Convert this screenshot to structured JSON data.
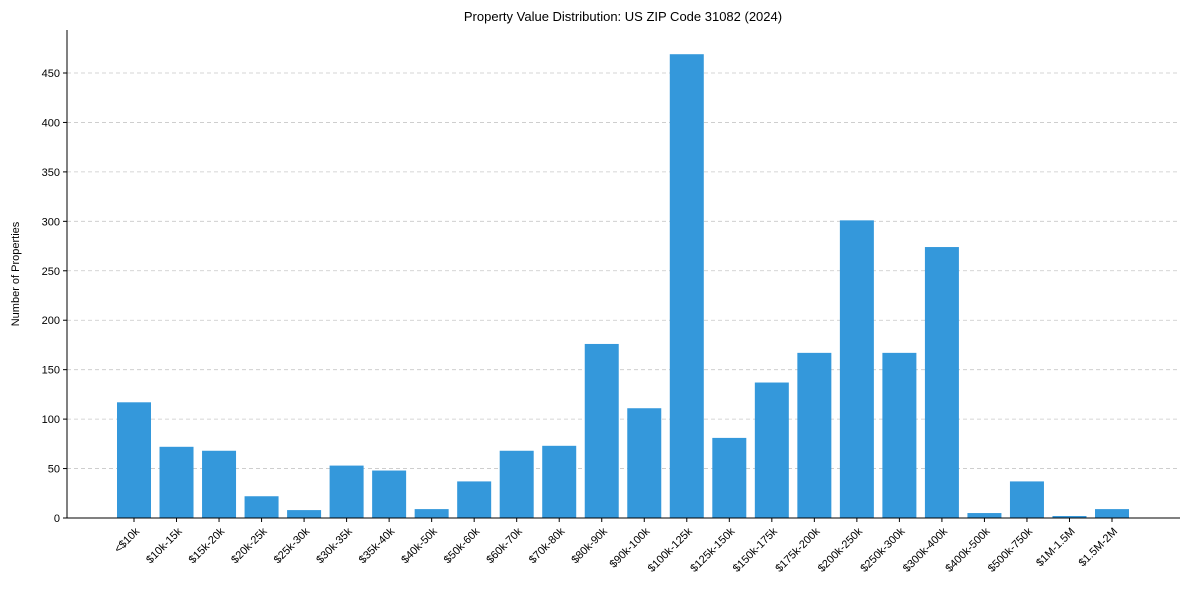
{
  "chart_data": {
    "type": "bar",
    "title": "Property Value Distribution: US ZIP Code 31082 (2024)",
    "xlabel": "",
    "ylabel": "Number of Properties",
    "ylim": [
      0,
      495
    ],
    "yticks": [
      0,
      50,
      100,
      150,
      200,
      250,
      300,
      350,
      400,
      450
    ],
    "grid": "y-dashed",
    "bar_color": "#3498db",
    "categories": [
      "<$10k",
      "$10k-15k",
      "$15k-20k",
      "$20k-25k",
      "$25k-30k",
      "$30k-35k",
      "$35k-40k",
      "$40k-50k",
      "$50k-60k",
      "$60k-70k",
      "$70k-80k",
      "$80k-90k",
      "$90k-100k",
      "$100k-125k",
      "$125k-150k",
      "$150k-175k",
      "$175k-200k",
      "$200k-250k",
      "$250k-300k",
      "$300k-400k",
      "$400k-500k",
      "$500k-750k",
      "$1M-1.5M",
      "$1.5M-2M"
    ],
    "values": [
      117,
      72,
      68,
      22,
      8,
      53,
      48,
      9,
      37,
      68,
      73,
      176,
      111,
      469,
      81,
      137,
      167,
      301,
      167,
      274,
      5,
      37,
      2,
      9
    ]
  }
}
